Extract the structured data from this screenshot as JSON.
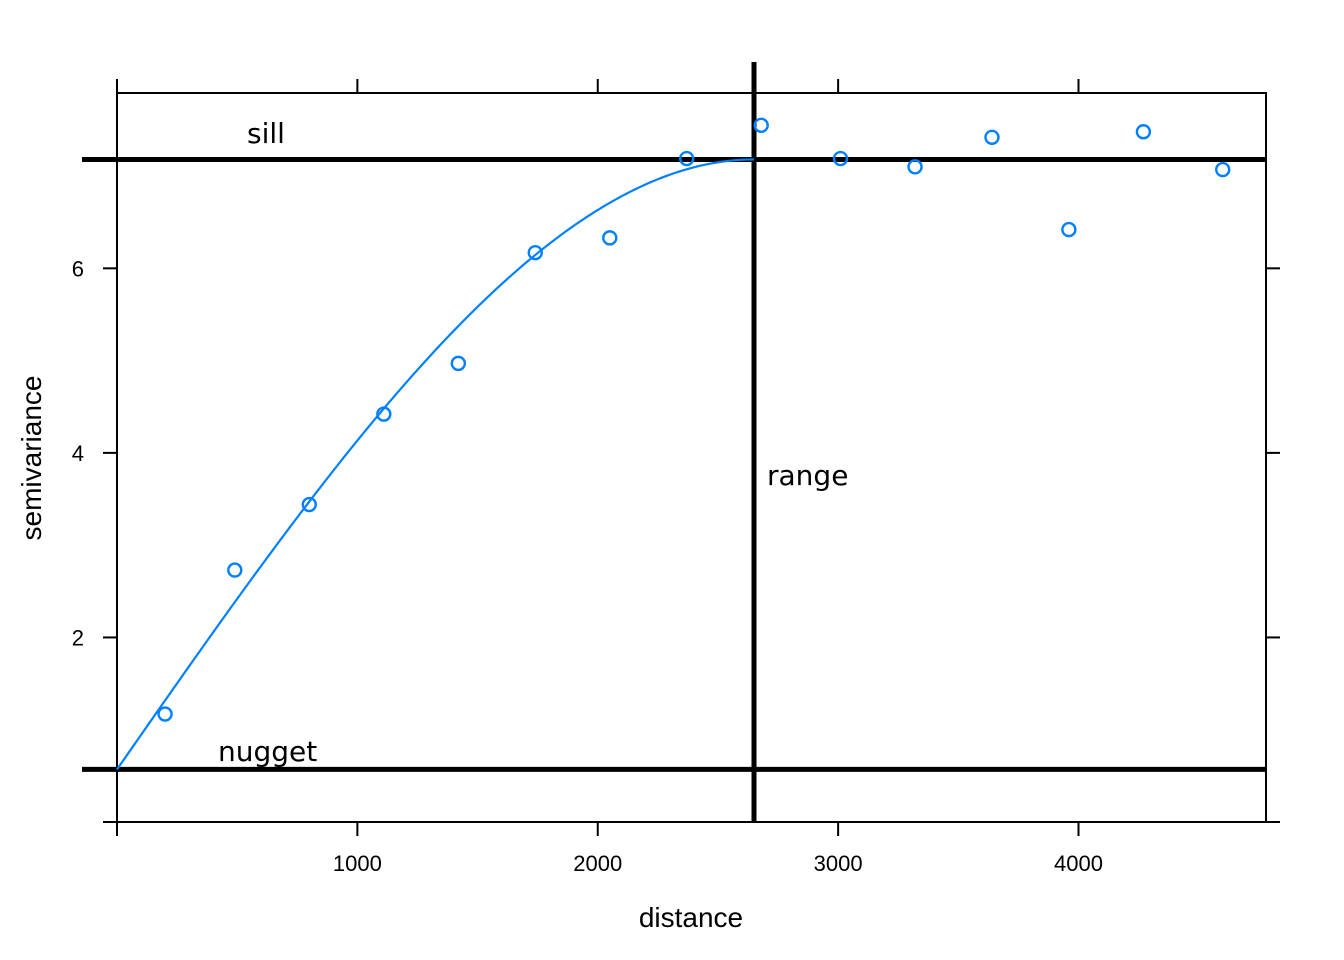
{
  "chart_data": {
    "type": "scatter",
    "xlabel": "distance",
    "ylabel": "semivariance",
    "xlim": [
      0,
      4780
    ],
    "ylim": [
      0.0,
      7.9
    ],
    "xticks": [
      1000,
      2000,
      3000,
      4000
    ],
    "xtick_labels": [
      "1000",
      "2000",
      "3000",
      "4000"
    ],
    "yticks": [
      2,
      4,
      6
    ],
    "ytick_labels": [
      "2",
      "4",
      "6"
    ],
    "series": [
      {
        "x": [
          200,
          490,
          800,
          1110,
          1420,
          1740,
          2050,
          2370,
          2680,
          3010,
          3320,
          3640,
          3960,
          4270,
          4600
        ],
        "y": [
          1.17,
          2.73,
          3.44,
          4.42,
          4.97,
          6.17,
          6.33,
          7.19,
          7.55,
          7.19,
          7.1,
          7.42,
          6.42,
          7.48,
          7.07
        ]
      }
    ],
    "model_curve": {
      "model": "spherical",
      "nugget": 0.57,
      "sill": 7.18,
      "range": 2650
    },
    "reference_lines": {
      "sill_y": 7.18,
      "nugget_y": 0.57,
      "range_x": 2650
    },
    "annotations": {
      "sill": "sill",
      "nugget": "nugget",
      "range": "range"
    },
    "colors": {
      "points": "#0080ff",
      "curve": "#0080ff",
      "lines": "#000000"
    },
    "grid": false,
    "legend": "none"
  }
}
